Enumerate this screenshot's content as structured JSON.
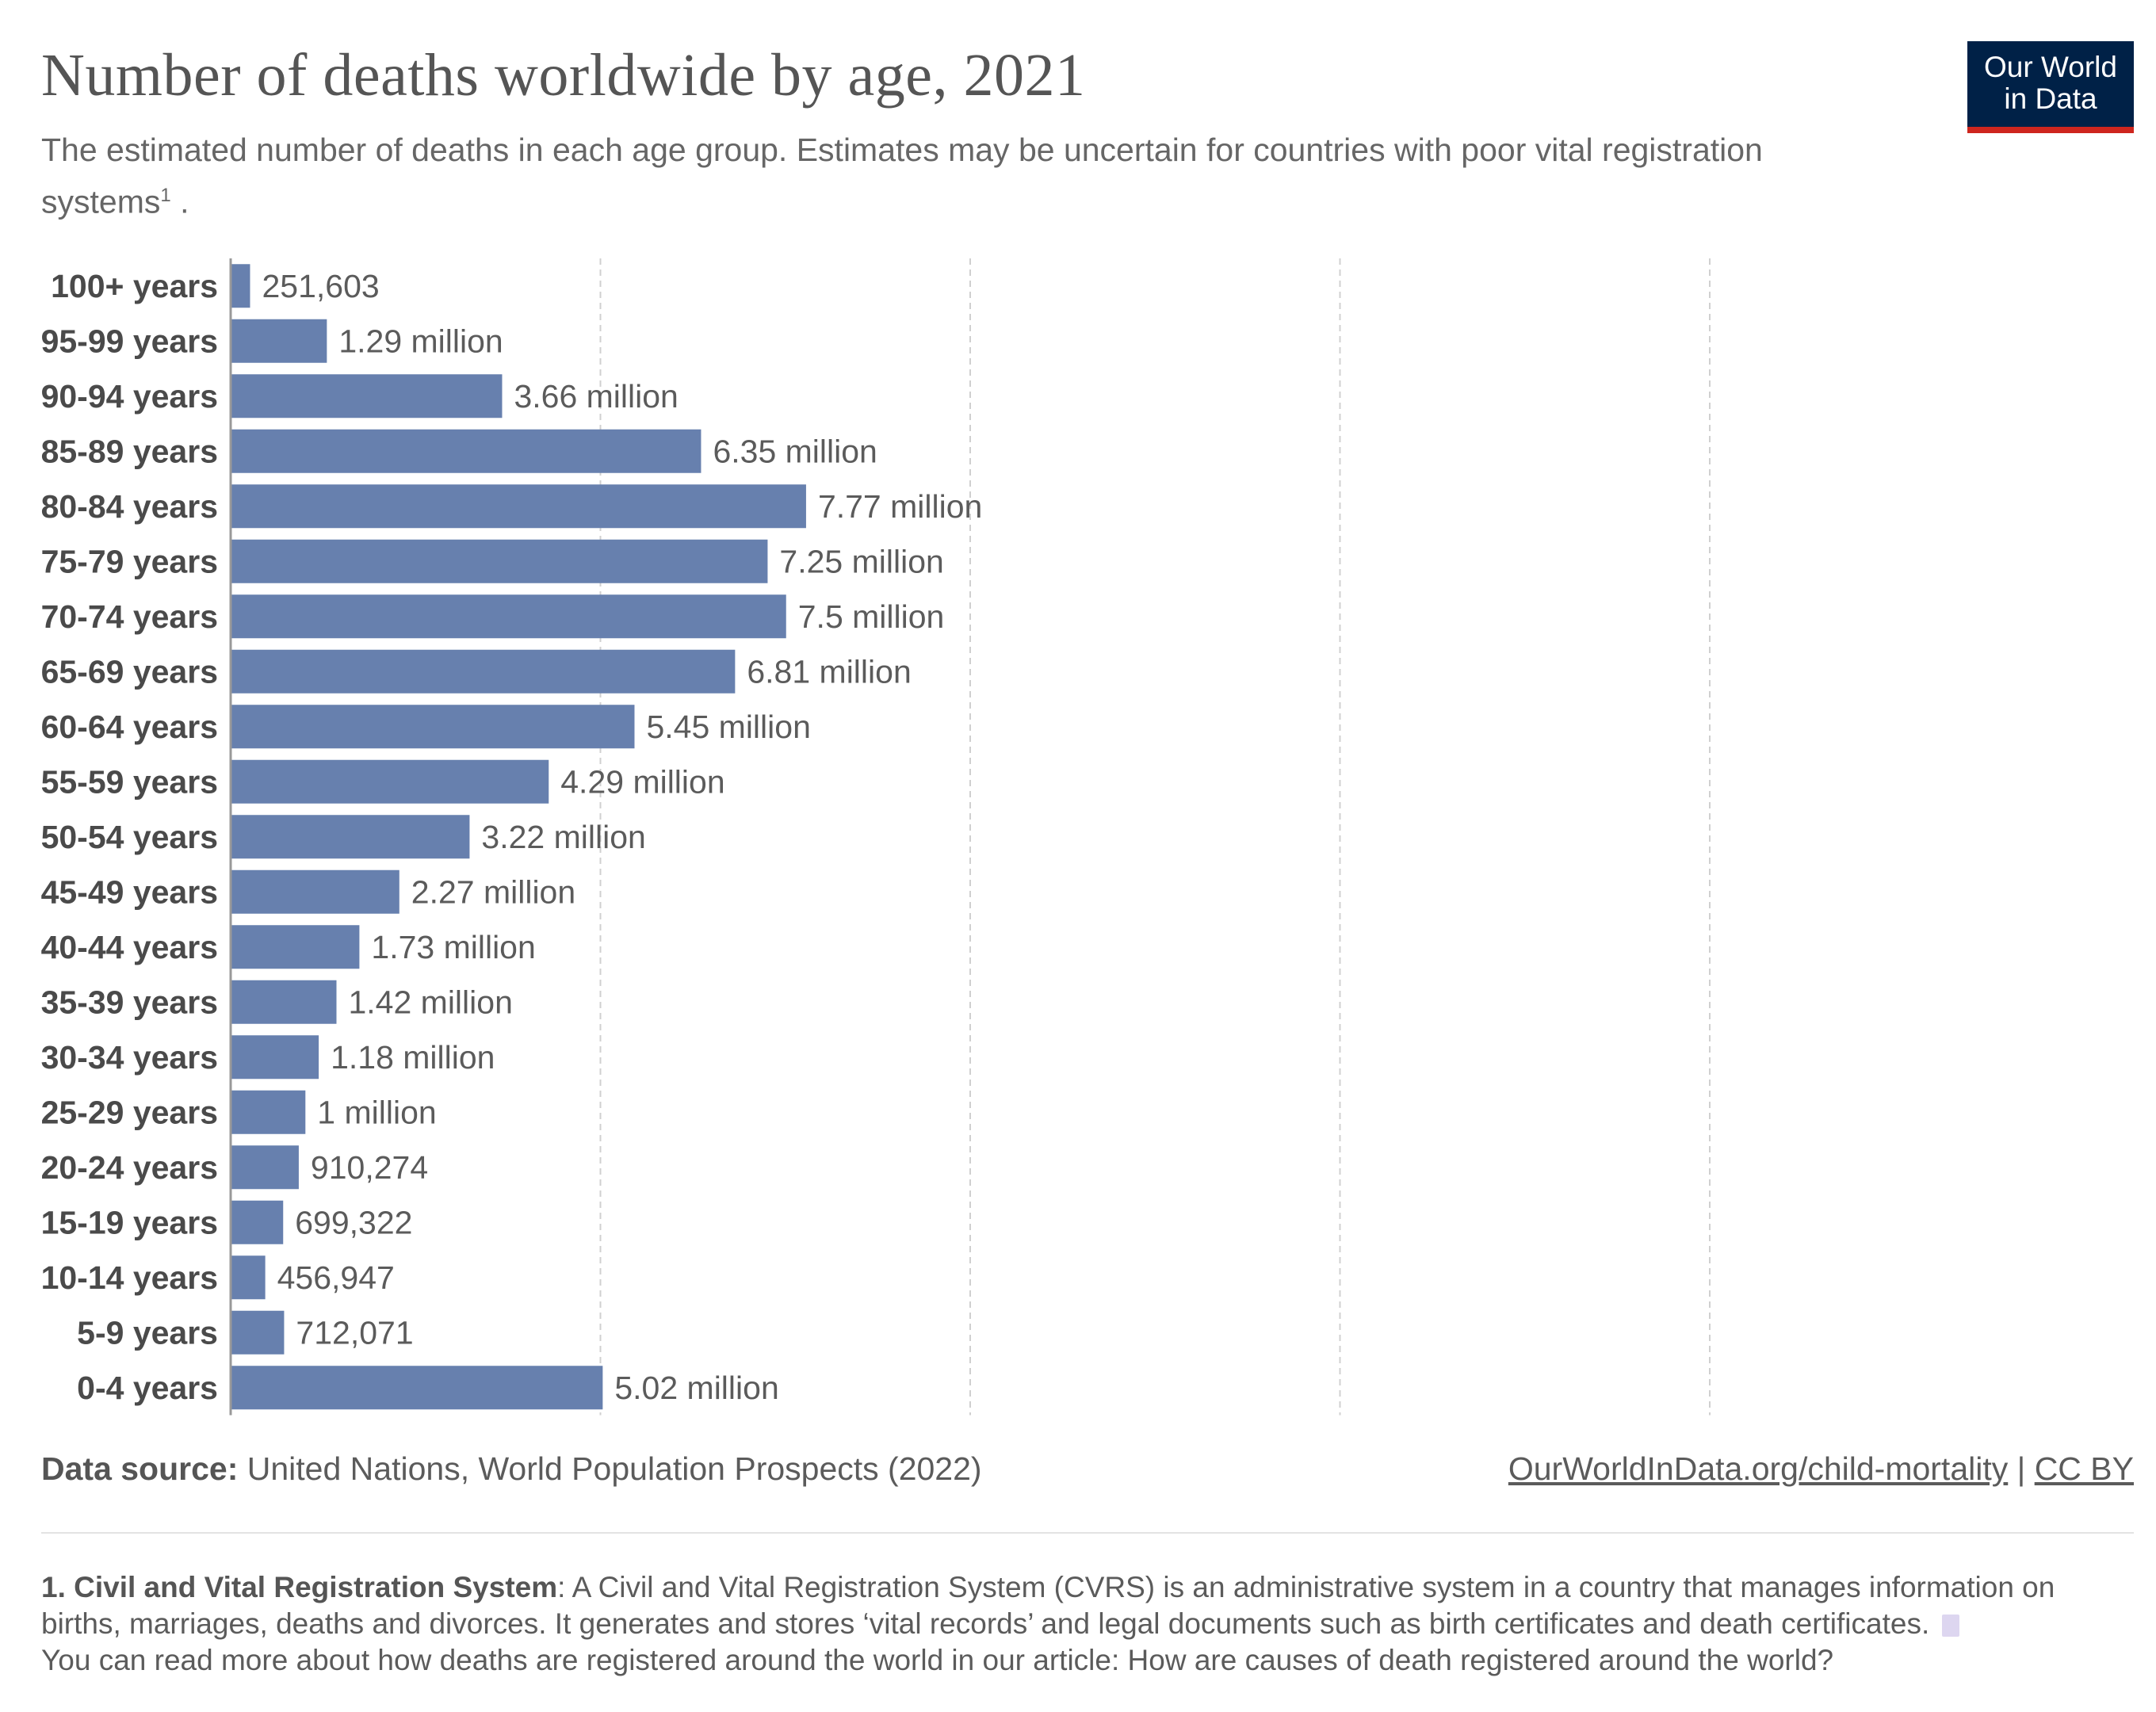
{
  "header": {
    "title": "Number of deaths worldwide by age, 2021",
    "subtitle": "The estimated number of deaths in each age group. Estimates may be uncertain for countries with poor vital registration systems",
    "subtitle_sup": "1",
    "subtitle_end": " ."
  },
  "logo": {
    "line1": "Our World",
    "line2": "in Data"
  },
  "chart_data": {
    "type": "bar",
    "orientation": "horizontal",
    "categories": [
      "100+ years",
      "95-99 years",
      "90-94 years",
      "85-89 years",
      "80-84 years",
      "75-79 years",
      "70-74 years",
      "65-69 years",
      "60-64 years",
      "55-59 years",
      "50-54 years",
      "45-49 years",
      "40-44 years",
      "35-39 years",
      "30-34 years",
      "25-29 years",
      "20-24 years",
      "15-19 years",
      "10-14 years",
      "5-9 years",
      "0-4 years"
    ],
    "values": [
      251603,
      1290000,
      3660000,
      6350000,
      7770000,
      7250000,
      7500000,
      6810000,
      5450000,
      4290000,
      3220000,
      2270000,
      1730000,
      1420000,
      1180000,
      1000000,
      910274,
      699322,
      456947,
      712071,
      5020000
    ],
    "value_labels": [
      "251,603",
      "1.29 million",
      "3.66 million",
      "6.35 million",
      "7.77 million",
      "7.25 million",
      "7.5 million",
      "6.81 million",
      "5.45 million",
      "4.29 million",
      "3.22 million",
      "2.27 million",
      "1.73 million",
      "1.42 million",
      "1.18 million",
      "1 million",
      "910,274",
      "699,322",
      "456,947",
      "712,071",
      "5.02 million"
    ],
    "xlim": [
      0,
      20000000
    ],
    "gridlines": [
      5000000,
      10000000,
      15000000,
      20000000
    ],
    "grid": true,
    "bar_color": "#6780ae"
  },
  "footer": {
    "source_label": "Data source:",
    "source_text": " United Nations, World Population Prospects (2022)",
    "link": "OurWorldInData.org/child-mortality",
    "separator": " | ",
    "license": "CC BY"
  },
  "note": {
    "label": "1. Civil and Vital Registration System",
    "text": ": A Civil and Vital Registration System (CVRS) is an administrative system in a country that manages information on births, marriages, deaths and divorces. It generates and stores ‘vital records’ and legal documents such as birth certificates and death certificates.",
    "text2": "You can read more about how deaths are registered around the world in our article: How are causes of death registered around the world?"
  }
}
